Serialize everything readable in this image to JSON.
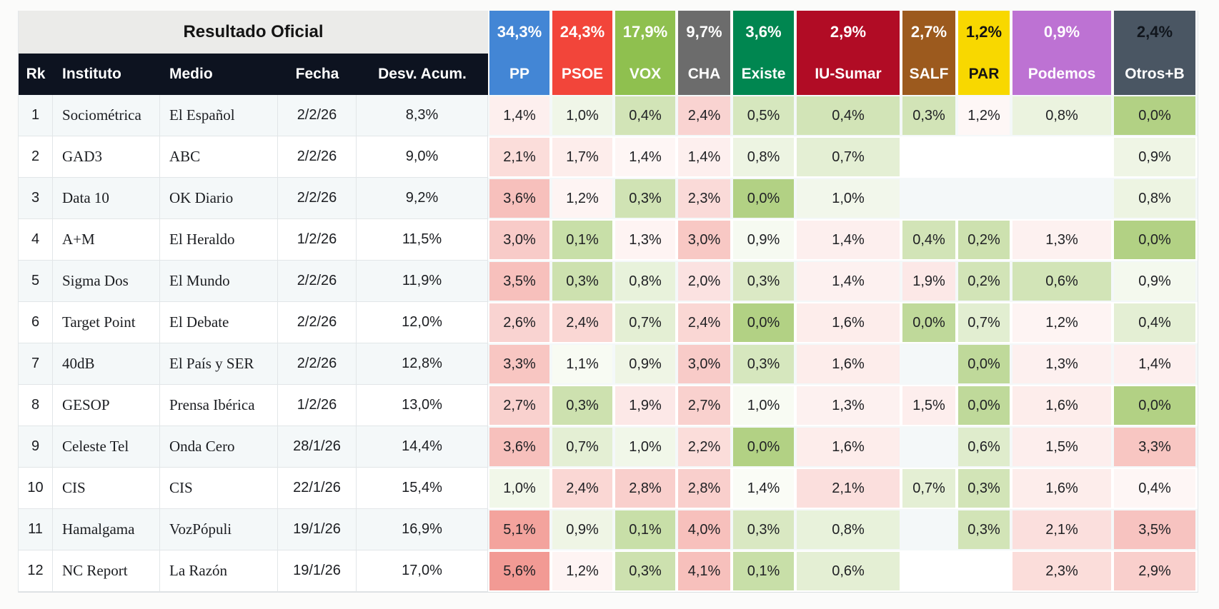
{
  "page": {
    "background": "#fbfbfa"
  },
  "colors": {
    "header_bar": "#0d1320",
    "official_header_bg": "#ebebe9",
    "row_stripe": "#f4f8f9",
    "row_plain": "#ffffff",
    "grid_line": "#e2e6e8",
    "heat_green_base": "#a4c96e",
    "heat_red_base": "#f08c85"
  },
  "chart_data": {
    "type": "table",
    "title": "Resultado Oficial",
    "left_columns": [
      "Rk",
      "Instituto",
      "Medio",
      "Fecha",
      "Desv. Acum."
    ],
    "parties": [
      {
        "key": "pp",
        "name": "PP",
        "official": "34,3%",
        "color": "#4386d5",
        "text": "#ffffff"
      },
      {
        "key": "psoe",
        "name": "PSOE",
        "official": "24,3%",
        "color": "#f2453a",
        "text": "#ffffff"
      },
      {
        "key": "vox",
        "name": "VOX",
        "official": "17,9%",
        "color": "#8fc04f",
        "text": "#ffffff"
      },
      {
        "key": "cha",
        "name": "CHA",
        "official": "9,7%",
        "color": "#6c6c6c",
        "text": "#ffffff"
      },
      {
        "key": "existe",
        "name": "Existe",
        "official": "3,6%",
        "color": "#008650",
        "text": "#ffffff"
      },
      {
        "key": "iu-sumar",
        "name": "IU-Sumar",
        "official": "2,9%",
        "color": "#b10c25",
        "text": "#ffffff"
      },
      {
        "key": "salf",
        "name": "SALF",
        "official": "2,7%",
        "color": "#9c5a1e",
        "text": "#ffffff"
      },
      {
        "key": "par",
        "name": "PAR",
        "official": "1,2%",
        "color": "#f8d800",
        "text": "#141414",
        "official_text": "#141414"
      },
      {
        "key": "podemos",
        "name": "Podemos",
        "official": "0,9%",
        "color": "#bd72d3",
        "text": "#ffffff"
      },
      {
        "key": "otros-b",
        "name": "Otros+B",
        "official": "2,4%",
        "color": "#4a5663",
        "text": "#ffffff",
        "official_text": "#11161d"
      }
    ],
    "rows": [
      {
        "rk": "1",
        "instituto": "Sociométrica",
        "medio": "El Español",
        "fecha": "2/2/26",
        "desv": "8,3%",
        "cells": [
          {
            "v": "1,4%",
            "t": 0.14
          },
          {
            "v": "1,0%",
            "t": -0.16
          },
          {
            "v": "0,4%",
            "t": -0.5
          },
          {
            "v": "2,4%",
            "t": 0.38
          },
          {
            "v": "0,5%",
            "t": -0.45
          },
          {
            "v": "0,4%",
            "t": -0.5
          },
          {
            "v": "0,3%",
            "t": -0.5
          },
          {
            "v": "1,2%",
            "t": 0.07
          },
          {
            "v": "0,8%",
            "t": -0.22
          },
          {
            "v": "0,0%",
            "t": -0.85
          }
        ]
      },
      {
        "rk": "2",
        "instituto": "GAD3",
        "medio": "ABC",
        "fecha": "2/2/26",
        "desv": "9,0%",
        "cells": [
          {
            "v": "2,1%",
            "t": 0.3
          },
          {
            "v": "1,7%",
            "t": 0.16
          },
          {
            "v": "1,4%",
            "t": 0.08
          },
          {
            "v": "1,4%",
            "t": 0.14
          },
          {
            "v": "0,8%",
            "t": -0.2
          },
          {
            "v": "0,7%",
            "t": -0.3
          },
          null,
          null,
          null,
          {
            "v": "0,9%",
            "t": -0.18
          }
        ]
      },
      {
        "rk": "3",
        "instituto": "Data 10",
        "medio": "OK Diario",
        "fecha": "2/2/26",
        "desv": "9,2%",
        "cells": [
          {
            "v": "3,6%",
            "t": 0.55
          },
          {
            "v": "1,2%",
            "t": 0.1
          },
          {
            "v": "0,3%",
            "t": -0.52
          },
          {
            "v": "2,3%",
            "t": 0.32
          },
          {
            "v": "0,0%",
            "t": -0.85
          },
          {
            "v": "1,0%",
            "t": -0.14
          },
          null,
          null,
          null,
          {
            "v": "0,8%",
            "t": -0.2
          }
        ]
      },
      {
        "rk": "4",
        "instituto": "A+M",
        "medio": "El Heraldo",
        "fecha": "1/2/26",
        "desv": "11,5%",
        "cells": [
          {
            "v": "3,0%",
            "t": 0.45
          },
          {
            "v": "0,1%",
            "t": -0.6
          },
          {
            "v": "1,3%",
            "t": 0.1
          },
          {
            "v": "3,0%",
            "t": 0.48
          },
          {
            "v": "0,9%",
            "t": -0.1
          },
          {
            "v": "1,4%",
            "t": 0.14
          },
          {
            "v": "0,4%",
            "t": -0.5
          },
          {
            "v": "0,2%",
            "t": -0.55
          },
          {
            "v": "1,3%",
            "t": 0.12
          },
          {
            "v": "0,0%",
            "t": -0.85
          }
        ]
      },
      {
        "rk": "5",
        "instituto": "Sigma Dos",
        "medio": "El Mundo",
        "fecha": "2/2/26",
        "desv": "11,9%",
        "cells": [
          {
            "v": "3,5%",
            "t": 0.55
          },
          {
            "v": "0,3%",
            "t": -0.55
          },
          {
            "v": "0,8%",
            "t": -0.25
          },
          {
            "v": "2,0%",
            "t": 0.25
          },
          {
            "v": "0,3%",
            "t": -0.4
          },
          {
            "v": "1,4%",
            "t": 0.12
          },
          {
            "v": "1,9%",
            "t": 0.2
          },
          {
            "v": "0,2%",
            "t": -0.5
          },
          {
            "v": "0,6%",
            "t": -0.5
          },
          {
            "v": "0,9%",
            "t": -0.12
          }
        ]
      },
      {
        "rk": "6",
        "instituto": "Target Point",
        "medio": "El Debate",
        "fecha": "2/2/26",
        "desv": "12,0%",
        "cells": [
          {
            "v": "2,6%",
            "t": 0.38
          },
          {
            "v": "2,4%",
            "t": 0.35
          },
          {
            "v": "0,7%",
            "t": -0.3
          },
          {
            "v": "2,4%",
            "t": 0.35
          },
          {
            "v": "0,0%",
            "t": -0.85
          },
          {
            "v": "1,6%",
            "t": 0.16
          },
          {
            "v": "0,0%",
            "t": -0.7
          },
          {
            "v": "0,7%",
            "t": -0.32
          },
          {
            "v": "1,2%",
            "t": 0.1
          },
          {
            "v": "0,4%",
            "t": -0.3
          }
        ]
      },
      {
        "rk": "7",
        "instituto": "40dB",
        "medio": "El País y SER",
        "fecha": "2/2/26",
        "desv": "12,8%",
        "cells": [
          {
            "v": "3,3%",
            "t": 0.5
          },
          {
            "v": "1,1%",
            "t": -0.08
          },
          {
            "v": "0,9%",
            "t": -0.18
          },
          {
            "v": "3,0%",
            "t": 0.45
          },
          {
            "v": "0,3%",
            "t": -0.45
          },
          {
            "v": "1,6%",
            "t": 0.16
          },
          null,
          {
            "v": "0,0%",
            "t": -0.7
          },
          {
            "v": "1,3%",
            "t": 0.13
          },
          {
            "v": "1,4%",
            "t": 0.14
          }
        ]
      },
      {
        "rk": "8",
        "instituto": "GESOP",
        "medio": "Prensa Ibérica",
        "fecha": "1/2/26",
        "desv": "13,0%",
        "cells": [
          {
            "v": "2,7%",
            "t": 0.4
          },
          {
            "v": "0,3%",
            "t": -0.55
          },
          {
            "v": "1,9%",
            "t": 0.2
          },
          {
            "v": "2,7%",
            "t": 0.4
          },
          {
            "v": "1,0%",
            "t": -0.08
          },
          {
            "v": "1,3%",
            "t": 0.12
          },
          {
            "v": "1,5%",
            "t": 0.15
          },
          {
            "v": "0,0%",
            "t": -0.7
          },
          {
            "v": "1,6%",
            "t": 0.16
          },
          {
            "v": "0,0%",
            "t": -0.85
          }
        ]
      },
      {
        "rk": "9",
        "instituto": "Celeste Tel",
        "medio": "Onda Cero",
        "fecha": "28/1/26",
        "desv": "14,4%",
        "cells": [
          {
            "v": "3,6%",
            "t": 0.55
          },
          {
            "v": "0,7%",
            "t": -0.3
          },
          {
            "v": "1,0%",
            "t": -0.15
          },
          {
            "v": "2,2%",
            "t": 0.3
          },
          {
            "v": "0,0%",
            "t": -0.85
          },
          {
            "v": "1,6%",
            "t": 0.16
          },
          null,
          {
            "v": "0,6%",
            "t": -0.35
          },
          {
            "v": "1,5%",
            "t": 0.15
          },
          {
            "v": "3,3%",
            "t": 0.5
          }
        ]
      },
      {
        "rk": "10",
        "instituto": "CIS",
        "medio": "CIS",
        "fecha": "22/1/26",
        "desv": "15,4%",
        "cells": [
          {
            "v": "1,0%",
            "t": -0.15
          },
          {
            "v": "2,4%",
            "t": 0.35
          },
          {
            "v": "2,8%",
            "t": 0.42
          },
          {
            "v": "2,8%",
            "t": 0.42
          },
          {
            "v": "1,4%",
            "t": -0.06
          },
          {
            "v": "2,1%",
            "t": 0.28
          },
          {
            "v": "0,7%",
            "t": -0.3
          },
          {
            "v": "0,3%",
            "t": -0.5
          },
          {
            "v": "1,6%",
            "t": 0.16
          },
          {
            "v": "0,4%",
            "t": 0.08
          }
        ]
      },
      {
        "rk": "11",
        "instituto": "Hamalgama",
        "medio": "VozPópuli",
        "fecha": "19/1/26",
        "desv": "16,9%",
        "cells": [
          {
            "v": "5,1%",
            "t": 0.8
          },
          {
            "v": "0,9%",
            "t": -0.18
          },
          {
            "v": "0,1%",
            "t": -0.6
          },
          {
            "v": "4,0%",
            "t": 0.55
          },
          {
            "v": "0,3%",
            "t": -0.42
          },
          {
            "v": "0,8%",
            "t": -0.25
          },
          null,
          {
            "v": "0,3%",
            "t": -0.5
          },
          {
            "v": "2,1%",
            "t": 0.28
          },
          {
            "v": "3,5%",
            "t": 0.52
          }
        ]
      },
      {
        "rk": "12",
        "instituto": "NC Report",
        "medio": "La Razón",
        "fecha": "19/1/26",
        "desv": "17,0%",
        "cells": [
          {
            "v": "5,6%",
            "t": 0.88
          },
          {
            "v": "1,2%",
            "t": 0.1
          },
          {
            "v": "0,3%",
            "t": -0.55
          },
          {
            "v": "4,1%",
            "t": 0.55
          },
          {
            "v": "0,1%",
            "t": -0.6
          },
          {
            "v": "0,6%",
            "t": -0.3
          },
          null,
          null,
          {
            "v": "2,3%",
            "t": 0.3
          },
          {
            "v": "2,9%",
            "t": 0.42
          }
        ]
      }
    ]
  }
}
